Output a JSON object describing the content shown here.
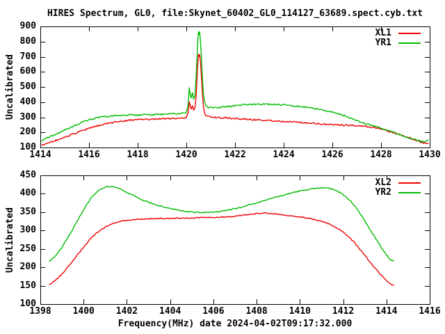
{
  "title": "HIRES Spectrum, GL0, file:Skynet_60402_GL0_114127_63689.spect.cyb.txt",
  "xlabel": "Frequency(MHz) date 2024-04-02T09:17:32.000",
  "colors": {
    "background": "#ffffff",
    "frame": "#000000",
    "text": "#000000",
    "red_series": "#ee0000",
    "green_series": "#00bb00"
  },
  "chart_data": [
    {
      "type": "line",
      "panel": "top",
      "ylabel": "Uncalibrated",
      "xlim": [
        1414,
        1430
      ],
      "ylim": [
        100,
        900
      ],
      "xticks": [
        1414,
        1416,
        1418,
        1420,
        1422,
        1424,
        1426,
        1428,
        1430
      ],
      "yticks": [
        100,
        200,
        300,
        400,
        500,
        600,
        700,
        800,
        900
      ],
      "grid": false,
      "legend_position": "top-right",
      "series": [
        {
          "name": "XL1",
          "color": "#ee0000",
          "noise": 1.1,
          "points": [
            [
              1414.05,
              115
            ],
            [
              1414.3,
              128
            ],
            [
              1414.6,
              145
            ],
            [
              1414.9,
              162
            ],
            [
              1415.2,
              180
            ],
            [
              1415.5,
              198
            ],
            [
              1415.8,
              216
            ],
            [
              1416.1,
              232
            ],
            [
              1416.4,
              246
            ],
            [
              1416.7,
              258
            ],
            [
              1417.0,
              267
            ],
            [
              1417.3,
              274
            ],
            [
              1417.6,
              279
            ],
            [
              1417.9,
              283
            ],
            [
              1418.2,
              286
            ],
            [
              1418.5,
              288
            ],
            [
              1418.8,
              289
            ],
            [
              1419.1,
              290
            ],
            [
              1419.4,
              291
            ],
            [
              1419.7,
              292
            ],
            [
              1419.9,
              294
            ],
            [
              1420.0,
              299
            ],
            [
              1420.07,
              330
            ],
            [
              1420.12,
              400
            ],
            [
              1420.16,
              378
            ],
            [
              1420.2,
              352
            ],
            [
              1420.25,
              374
            ],
            [
              1420.3,
              346
            ],
            [
              1420.35,
              362
            ],
            [
              1420.4,
              430
            ],
            [
              1420.44,
              560
            ],
            [
              1420.47,
              660
            ],
            [
              1420.5,
              718
            ],
            [
              1420.52,
              700
            ],
            [
              1420.55,
              712
            ],
            [
              1420.58,
              662
            ],
            [
              1420.62,
              565
            ],
            [
              1420.66,
              455
            ],
            [
              1420.7,
              372
            ],
            [
              1420.75,
              330
            ],
            [
              1420.8,
              312
            ],
            [
              1420.9,
              304
            ],
            [
              1421.1,
              301
            ],
            [
              1421.4,
              298
            ],
            [
              1421.7,
              295
            ],
            [
              1422.0,
              292
            ],
            [
              1422.4,
              288
            ],
            [
              1422.8,
              284
            ],
            [
              1423.2,
              280
            ],
            [
              1423.6,
              276
            ],
            [
              1424.0,
              272
            ],
            [
              1424.4,
              268
            ],
            [
              1424.8,
              264
            ],
            [
              1425.2,
              260
            ],
            [
              1425.6,
              256
            ],
            [
              1426.0,
              252
            ],
            [
              1426.4,
              248
            ],
            [
              1426.8,
              245
            ],
            [
              1427.2,
              242
            ],
            [
              1427.6,
              236
            ],
            [
              1428.0,
              223
            ],
            [
              1428.4,
              204
            ],
            [
              1428.8,
              185
            ],
            [
              1429.2,
              162
            ],
            [
              1429.5,
              144
            ],
            [
              1429.7,
              132
            ],
            [
              1429.85,
              126
            ],
            [
              1429.95,
              124
            ]
          ]
        },
        {
          "name": "YR1",
          "color": "#00bb00",
          "noise": 1.1,
          "points": [
            [
              1414.05,
              148
            ],
            [
              1414.3,
              164
            ],
            [
              1414.6,
              186
            ],
            [
              1414.9,
              208
            ],
            [
              1415.2,
              230
            ],
            [
              1415.5,
              252
            ],
            [
              1415.8,
              272
            ],
            [
              1416.1,
              288
            ],
            [
              1416.4,
              298
            ],
            [
              1416.7,
              305
            ],
            [
              1417.0,
              310
            ],
            [
              1417.3,
              312
            ],
            [
              1417.6,
              314
            ],
            [
              1417.9,
              315
            ],
            [
              1418.2,
              316
            ],
            [
              1418.5,
              317
            ],
            [
              1418.8,
              318
            ],
            [
              1419.1,
              320
            ],
            [
              1419.4,
              322
            ],
            [
              1419.7,
              325
            ],
            [
              1419.9,
              328
            ],
            [
              1420.0,
              334
            ],
            [
              1420.07,
              380
            ],
            [
              1420.12,
              490
            ],
            [
              1420.16,
              455
            ],
            [
              1420.2,
              432
            ],
            [
              1420.25,
              458
            ],
            [
              1420.3,
              420
            ],
            [
              1420.35,
              445
            ],
            [
              1420.4,
              560
            ],
            [
              1420.44,
              700
            ],
            [
              1420.47,
              810
            ],
            [
              1420.5,
              868
            ],
            [
              1420.52,
              845
            ],
            [
              1420.55,
              860
            ],
            [
              1420.58,
              805
            ],
            [
              1420.62,
              700
            ],
            [
              1420.66,
              565
            ],
            [
              1420.7,
              455
            ],
            [
              1420.75,
              400
            ],
            [
              1420.8,
              375
            ],
            [
              1420.9,
              364
            ],
            [
              1421.1,
              363
            ],
            [
              1421.4,
              366
            ],
            [
              1421.7,
              370
            ],
            [
              1422.0,
              376
            ],
            [
              1422.4,
              382
            ],
            [
              1422.8,
              386
            ],
            [
              1423.2,
              387
            ],
            [
              1423.6,
              385
            ],
            [
              1424.0,
              381
            ],
            [
              1424.4,
              376
            ],
            [
              1424.8,
              369
            ],
            [
              1425.2,
              360
            ],
            [
              1425.6,
              348
            ],
            [
              1426.0,
              334
            ],
            [
              1426.4,
              316
            ],
            [
              1426.8,
              290
            ],
            [
              1427.2,
              266
            ],
            [
              1427.6,
              246
            ],
            [
              1428.0,
              226
            ],
            [
              1428.4,
              206
            ],
            [
              1428.8,
              184
            ],
            [
              1429.2,
              162
            ],
            [
              1429.5,
              147
            ],
            [
              1429.7,
              140
            ],
            [
              1429.85,
              140
            ],
            [
              1429.95,
              150
            ]
          ]
        }
      ]
    },
    {
      "type": "line",
      "panel": "bottom",
      "ylabel": "Uncalibrated",
      "xlim": [
        1398,
        1416
      ],
      "ylim": [
        100,
        450
      ],
      "xticks": [
        1398,
        1400,
        1402,
        1404,
        1406,
        1408,
        1410,
        1412,
        1414,
        1416
      ],
      "yticks": [
        100,
        150,
        200,
        250,
        300,
        350,
        400,
        450
      ],
      "grid": false,
      "legend_position": "top-right",
      "series": [
        {
          "name": "XL2",
          "color": "#ee0000",
          "noise": 0.8,
          "points": [
            [
              1398.4,
              153
            ],
            [
              1398.6,
              160
            ],
            [
              1398.8,
              170
            ],
            [
              1399.0,
              182
            ],
            [
              1399.2,
              196
            ],
            [
              1399.4,
              210
            ],
            [
              1399.6,
              225
            ],
            [
              1399.8,
              240
            ],
            [
              1400.0,
              255
            ],
            [
              1400.2,
              269
            ],
            [
              1400.4,
              282
            ],
            [
              1400.6,
              293
            ],
            [
              1400.8,
              302
            ],
            [
              1401.0,
              309
            ],
            [
              1401.2,
              315
            ],
            [
              1401.4,
              320
            ],
            [
              1401.6,
              323
            ],
            [
              1401.8,
              326
            ],
            [
              1402.0,
              328
            ],
            [
              1402.3,
              330
            ],
            [
              1402.6,
              331
            ],
            [
              1402.9,
              332
            ],
            [
              1403.2,
              332
            ],
            [
              1403.5,
              333
            ],
            [
              1403.8,
              333
            ],
            [
              1404.1,
              333
            ],
            [
              1404.4,
              334
            ],
            [
              1404.7,
              334
            ],
            [
              1405.0,
              334
            ],
            [
              1405.3,
              335
            ],
            [
              1405.6,
              335
            ],
            [
              1405.9,
              335
            ],
            [
              1406.2,
              336
            ],
            [
              1406.5,
              337
            ],
            [
              1406.8,
              338
            ],
            [
              1407.1,
              340
            ],
            [
              1407.4,
              342
            ],
            [
              1407.7,
              344
            ],
            [
              1408.0,
              346
            ],
            [
              1408.3,
              347
            ],
            [
              1408.6,
              347
            ],
            [
              1408.9,
              345
            ],
            [
              1409.2,
              343
            ],
            [
              1409.5,
              341
            ],
            [
              1409.8,
              338
            ],
            [
              1410.1,
              336
            ],
            [
              1410.4,
              333
            ],
            [
              1410.7,
              330
            ],
            [
              1411.0,
              325
            ],
            [
              1411.3,
              319
            ],
            [
              1411.6,
              311
            ],
            [
              1411.9,
              300
            ],
            [
              1412.2,
              286
            ],
            [
              1412.5,
              268
            ],
            [
              1412.8,
              247
            ],
            [
              1413.1,
              225
            ],
            [
              1413.4,
              203
            ],
            [
              1413.7,
              182
            ],
            [
              1414.0,
              164
            ],
            [
              1414.2,
              154
            ],
            [
              1414.35,
              152
            ]
          ]
        },
        {
          "name": "YR2",
          "color": "#00bb00",
          "noise": 0.8,
          "points": [
            [
              1398.4,
              216
            ],
            [
              1398.6,
              226
            ],
            [
              1398.8,
              239
            ],
            [
              1399.0,
              255
            ],
            [
              1399.2,
              273
            ],
            [
              1399.4,
              293
            ],
            [
              1399.6,
              314
            ],
            [
              1399.8,
              336
            ],
            [
              1400.0,
              357
            ],
            [
              1400.2,
              376
            ],
            [
              1400.4,
              392
            ],
            [
              1400.6,
              404
            ],
            [
              1400.8,
              413
            ],
            [
              1401.0,
              418
            ],
            [
              1401.2,
              420
            ],
            [
              1401.4,
              419
            ],
            [
              1401.6,
              415
            ],
            [
              1401.8,
              410
            ],
            [
              1402.0,
              404
            ],
            [
              1402.2,
              398
            ],
            [
              1402.4,
              392
            ],
            [
              1402.6,
              386
            ],
            [
              1402.8,
              381
            ],
            [
              1403.0,
              377
            ],
            [
              1403.3,
              371
            ],
            [
              1403.6,
              366
            ],
            [
              1403.9,
              361
            ],
            [
              1404.2,
              357
            ],
            [
              1404.5,
              354
            ],
            [
              1404.8,
              351
            ],
            [
              1405.1,
              350
            ],
            [
              1405.4,
              349
            ],
            [
              1405.7,
              349
            ],
            [
              1406.0,
              350
            ],
            [
              1406.3,
              352
            ],
            [
              1406.6,
              355
            ],
            [
              1406.9,
              358
            ],
            [
              1407.2,
              362
            ],
            [
              1407.5,
              367
            ],
            [
              1407.8,
              372
            ],
            [
              1408.1,
              377
            ],
            [
              1408.4,
              382
            ],
            [
              1408.7,
              387
            ],
            [
              1409.0,
              392
            ],
            [
              1409.3,
              397
            ],
            [
              1409.6,
              402
            ],
            [
              1409.9,
              406
            ],
            [
              1410.2,
              410
            ],
            [
              1410.5,
              413
            ],
            [
              1410.8,
              415
            ],
            [
              1411.1,
              416
            ],
            [
              1411.4,
              414
            ],
            [
              1411.7,
              408
            ],
            [
              1412.0,
              398
            ],
            [
              1412.3,
              383
            ],
            [
              1412.6,
              362
            ],
            [
              1412.9,
              336
            ],
            [
              1413.2,
              307
            ],
            [
              1413.5,
              278
            ],
            [
              1413.8,
              251
            ],
            [
              1414.0,
              233
            ],
            [
              1414.2,
              220
            ],
            [
              1414.35,
              216
            ]
          ]
        }
      ]
    }
  ]
}
